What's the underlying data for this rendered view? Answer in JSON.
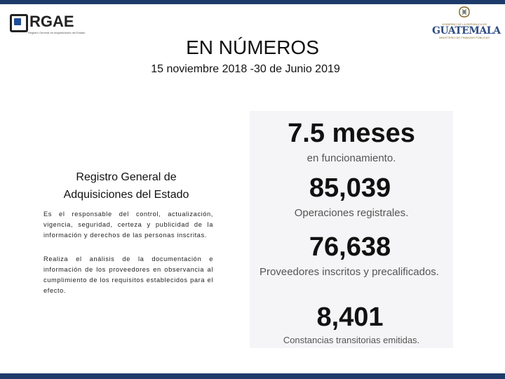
{
  "header": {
    "logo_left_text": "RGAE",
    "logo_left_subtitle": "Registro General de Adquisiciones del Estado",
    "logo_right_top": "GOBIERNO DE LA REPÚBLICA DE",
    "logo_right_name": "GUATEMALA",
    "logo_right_ministry": "MINISTERIO DE FINANZAS PÚBLICAS",
    "colors": {
      "bar": "#1e3a6a",
      "accent_blue": "#1e4f9a"
    }
  },
  "title": "EN NÚMEROS",
  "subtitle": "15 noviembre 2018 -30 de Junio 2019",
  "left": {
    "heading": "Registro General de Adquisiciones del Estado",
    "paragraph1": "Es el responsable del control, actualización, vigencia, seguridad, certeza y publicidad de la información y derechos de las personas inscritas.",
    "paragraph2": "Realiza el análisis de la documentación e información de los proveedores en observancia al cumplimiento de los requisitos establecidos para el efecto."
  },
  "stats": [
    {
      "value": "7.5 meses",
      "label": "en funcionamiento."
    },
    {
      "value": "85,039",
      "label": "Operaciones registrales."
    },
    {
      "value": "76,638",
      "label": "Proveedores inscritos y precalificados."
    },
    {
      "value": "8,401",
      "label": "Constancias transitorias emitidas."
    }
  ]
}
